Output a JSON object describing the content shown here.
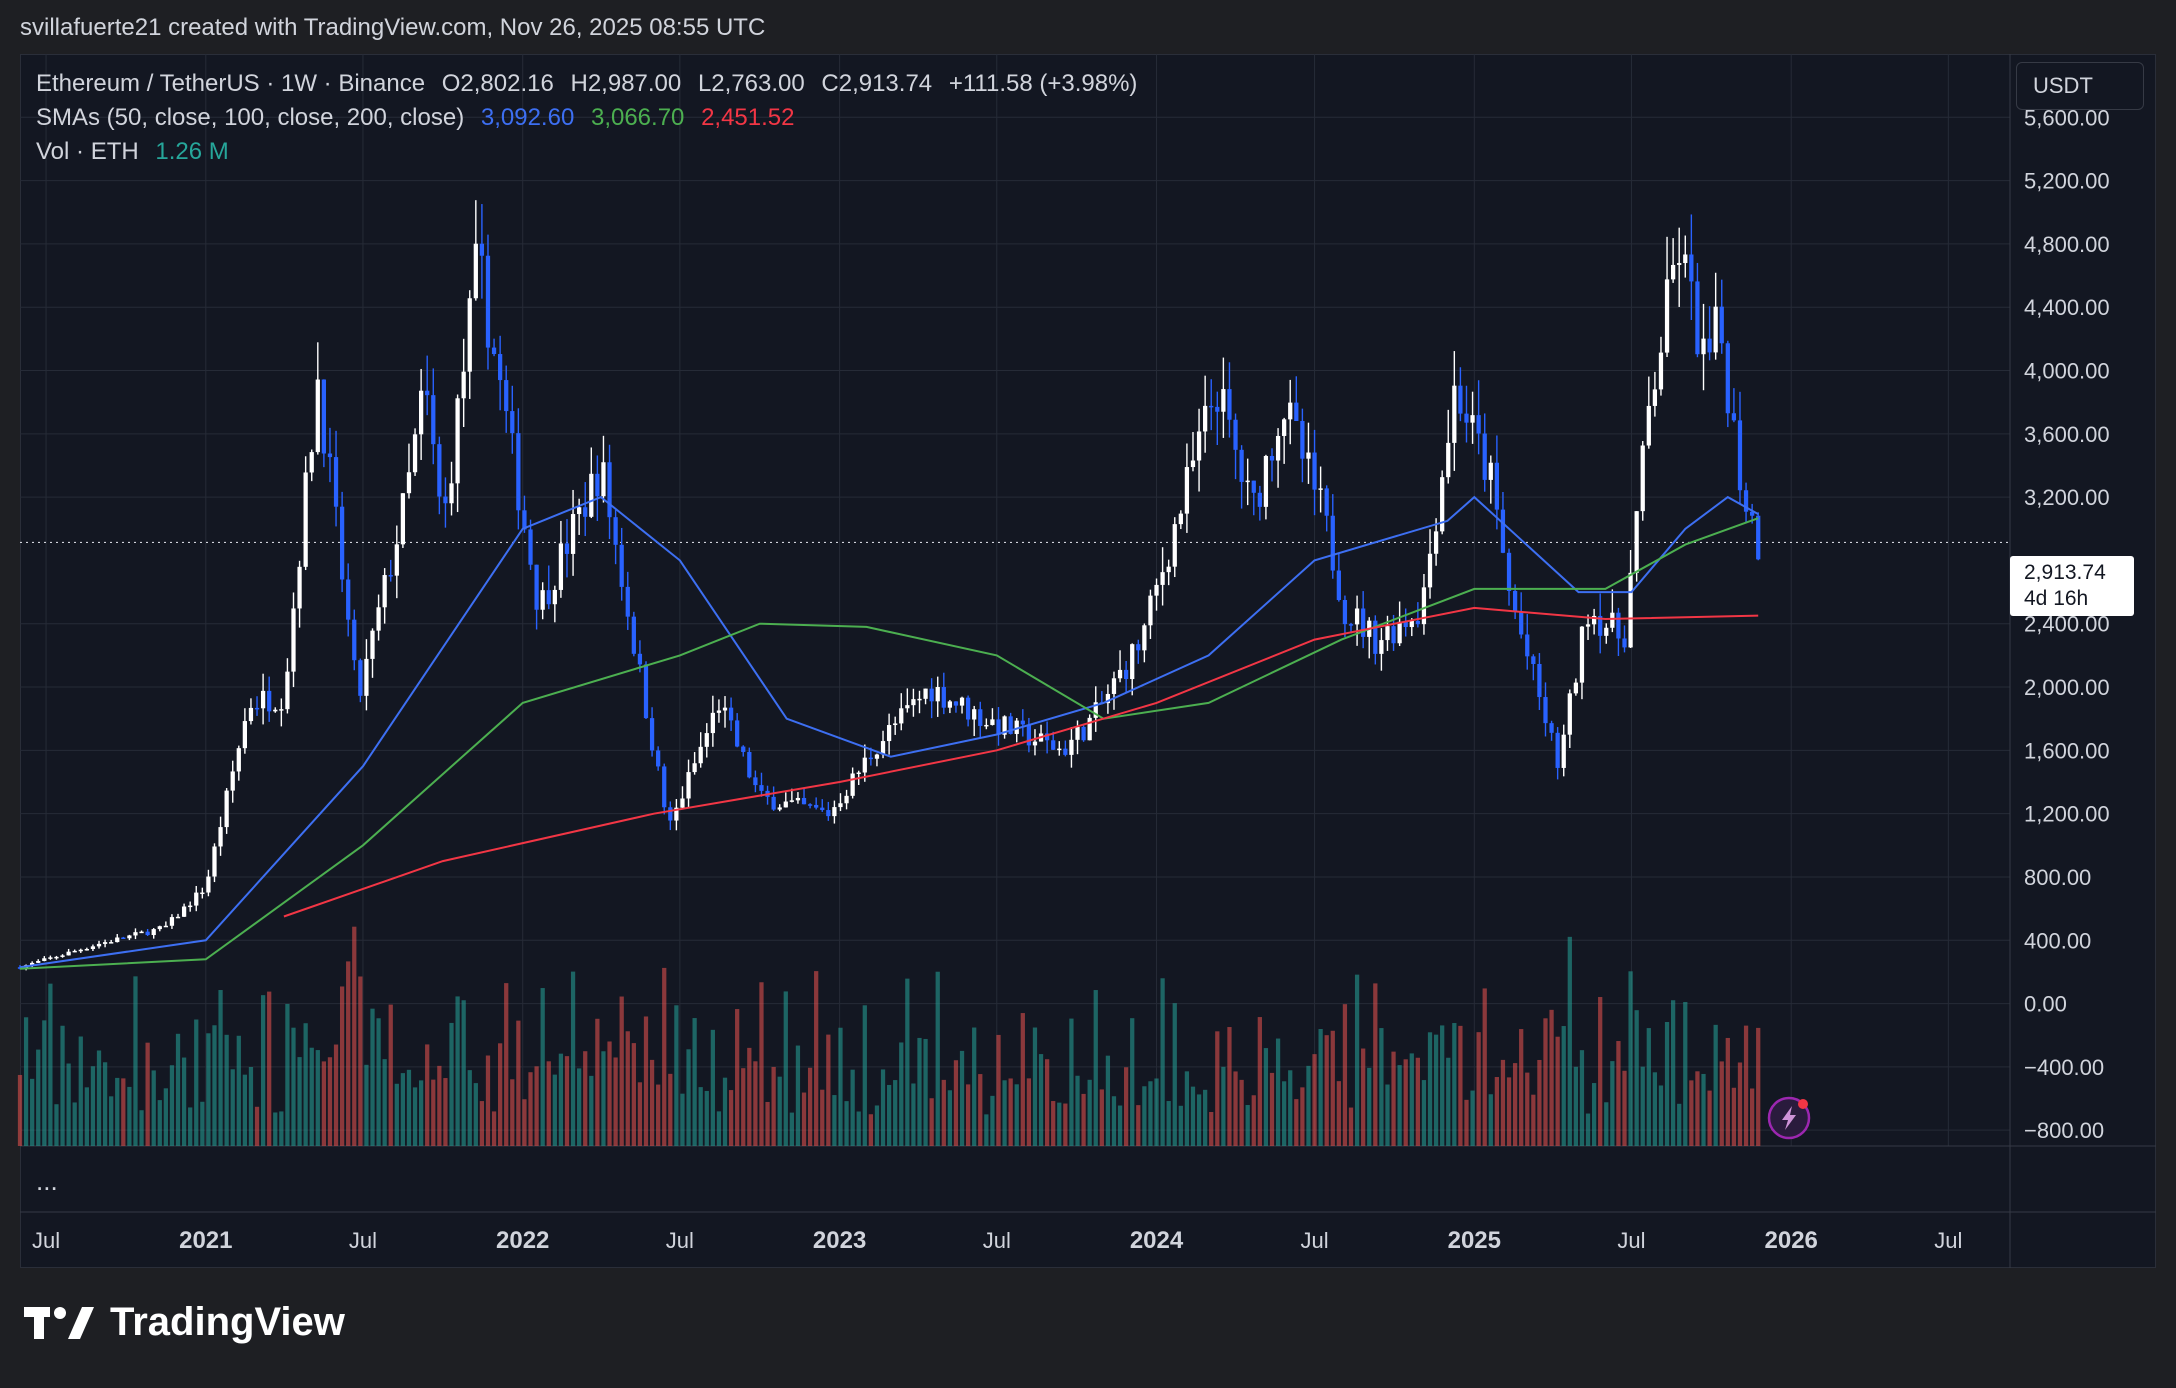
{
  "header": {
    "attribution": "svillafuerte21 created with TradingView.com, Nov 26, 2025 08:55 UTC"
  },
  "legend": {
    "symbol": "Ethereum / TetherUS · 1W · Binance",
    "open": "O2,802.16",
    "high": "H2,987.00",
    "low": "L2,763.00",
    "close": "C2,913.74",
    "change": "+111.58 (+3.98%)",
    "sma_label": "SMAs (50, close, 100, close, 200, close)",
    "sma50": "3,092.60",
    "sma100": "3,066.70",
    "sma200": "2,451.52",
    "vol_label": "Vol · ETH",
    "vol_value": "1.26 M"
  },
  "currency_button": "USDT",
  "price_tag": {
    "price": "2,913.74",
    "countdown": "4d 16h"
  },
  "more": "...",
  "brand": "TradingView",
  "colors": {
    "up": "#ffffff",
    "down": "#2962ff",
    "sma50": "#3d6ff2",
    "sma100": "#4caf50",
    "sma200": "#f23645",
    "vol_up": "#26a69a",
    "vol_down": "#ef5350"
  },
  "chart_data": {
    "type": "candlestick",
    "ylim": [
      -900,
      6000
    ],
    "y_ticks": [
      "5,600.00",
      "5,200.00",
      "4,800.00",
      "4,400.00",
      "4,000.00",
      "3,600.00",
      "3,200.00",
      "2,400.00",
      "2,000.00",
      "1,600.00",
      "1,200.00",
      "800.00",
      "400.00",
      "0.00",
      "−400.00",
      "−800.00"
    ],
    "x_labels": [
      "Jul",
      "2021",
      "Jul",
      "2022",
      "Jul",
      "2023",
      "Jul",
      "2024",
      "Jul",
      "2025",
      "Jul",
      "2026",
      "Jul"
    ],
    "last_price": 2913.74,
    "approx_close_path": [
      [
        "2020-06-01",
        230
      ],
      [
        "2020-09-01",
        380
      ],
      [
        "2020-11-15",
        480
      ],
      [
        "2021-01-01",
        740
      ],
      [
        "2021-02-20",
        1900
      ],
      [
        "2021-04-01",
        1950
      ],
      [
        "2021-05-10",
        3950
      ],
      [
        "2021-06-25",
        1900
      ],
      [
        "2021-08-20",
        3200
      ],
      [
        "2021-09-10",
        3900
      ],
      [
        "2021-10-01",
        3000
      ],
      [
        "2021-11-10",
        4700
      ],
      [
        "2022-01-20",
        2500
      ],
      [
        "2022-04-01",
        3400
      ],
      [
        "2022-06-18",
        1100
      ],
      [
        "2022-08-15",
        1900
      ],
      [
        "2022-10-01",
        1300
      ],
      [
        "2022-12-20",
        1200
      ],
      [
        "2023-02-15",
        1650
      ],
      [
        "2023-04-15",
        2000
      ],
      [
        "2023-06-15",
        1800
      ],
      [
        "2023-09-15",
        1600
      ],
      [
        "2023-10-20",
        1800
      ],
      [
        "2023-12-15",
        2300
      ],
      [
        "2024-03-10",
        3900
      ],
      [
        "2024-04-20",
        3100
      ],
      [
        "2024-05-25",
        3800
      ],
      [
        "2024-07-10",
        3100
      ],
      [
        "2024-08-05",
        2500
      ],
      [
        "2024-09-10",
        2300
      ],
      [
        "2024-11-01",
        2500
      ],
      [
        "2024-12-10",
        3900
      ],
      [
        "2025-01-20",
        3300
      ],
      [
        "2025-02-10",
        2600
      ],
      [
        "2025-04-08",
        1500
      ],
      [
        "2025-05-12",
        2500
      ],
      [
        "2025-06-22",
        2300
      ],
      [
        "2025-07-20",
        3700
      ],
      [
        "2025-08-24",
        4800
      ],
      [
        "2025-09-25",
        4000
      ],
      [
        "2025-10-10",
        4300
      ],
      [
        "2025-11-04",
        3300
      ],
      [
        "2025-11-24",
        2913.74
      ]
    ],
    "sma50_path": [
      [
        "2020-06-01",
        230
      ],
      [
        "2021-01-01",
        400
      ],
      [
        "2021-07-01",
        1500
      ],
      [
        "2022-01-01",
        3000
      ],
      [
        "2022-04-01",
        3200
      ],
      [
        "2022-07-01",
        2800
      ],
      [
        "2022-11-01",
        1800
      ],
      [
        "2023-03-01",
        1560
      ],
      [
        "2023-07-01",
        1700
      ],
      [
        "2023-11-01",
        1900
      ],
      [
        "2024-03-01",
        2200
      ],
      [
        "2024-07-01",
        2800
      ],
      [
        "2024-12-01",
        3050
      ],
      [
        "2025-01-01",
        3200
      ],
      [
        "2025-05-01",
        2600
      ],
      [
        "2025-07-01",
        2600
      ],
      [
        "2025-09-01",
        3000
      ],
      [
        "2025-10-20",
        3200
      ],
      [
        "2025-11-24",
        3092.6
      ]
    ],
    "sma100_path": [
      [
        "2020-06-01",
        220
      ],
      [
        "2021-01-01",
        280
      ],
      [
        "2021-07-01",
        1000
      ],
      [
        "2022-01-01",
        1900
      ],
      [
        "2022-07-01",
        2200
      ],
      [
        "2022-10-01",
        2400
      ],
      [
        "2023-02-01",
        2380
      ],
      [
        "2023-07-01",
        2200
      ],
      [
        "2023-11-01",
        1800
      ],
      [
        "2024-03-01",
        1900
      ],
      [
        "2024-08-01",
        2300
      ],
      [
        "2025-01-01",
        2620
      ],
      [
        "2025-06-01",
        2620
      ],
      [
        "2025-09-01",
        2900
      ],
      [
        "2025-11-24",
        3066.7
      ]
    ],
    "sma200_path": [
      [
        "2021-04-01",
        550
      ],
      [
        "2021-10-01",
        900
      ],
      [
        "2022-06-01",
        1200
      ],
      [
        "2023-01-01",
        1400
      ],
      [
        "2023-07-01",
        1600
      ],
      [
        "2024-01-01",
        1900
      ],
      [
        "2024-07-01",
        2300
      ],
      [
        "2025-01-01",
        2500
      ],
      [
        "2025-06-01",
        2430
      ],
      [
        "2025-11-24",
        2451.52
      ]
    ]
  }
}
